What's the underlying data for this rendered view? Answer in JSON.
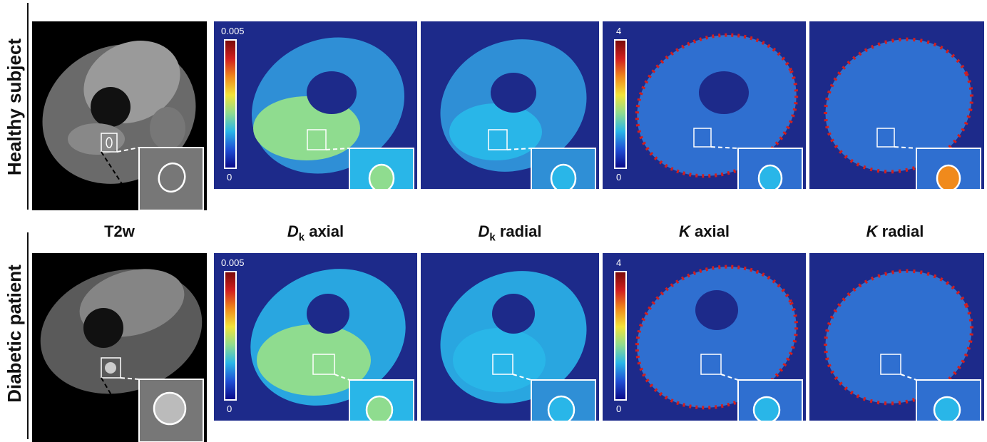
{
  "rows": [
    {
      "label": "Healthy subject"
    },
    {
      "label": "Diabetic patient"
    }
  ],
  "columns": [
    {
      "label_sym": "",
      "label_sub": "",
      "label_text": "T2w"
    },
    {
      "label_sym": "D",
      "label_sub": "k",
      "label_text": " axial"
    },
    {
      "label_sym": "D",
      "label_sub": "k",
      "label_text": " radial"
    },
    {
      "label_sym": "K",
      "label_sub": "",
      "label_text": " axial"
    },
    {
      "label_sym": "K",
      "label_sub": "",
      "label_text": " radial"
    }
  ],
  "colorbars": {
    "dk": {
      "max": "0.005",
      "min": "0"
    },
    "k": {
      "max": "4",
      "min": "0"
    }
  },
  "colors": {
    "map_background": "#1d2a8a",
    "jet": [
      "#0a0a8a",
      "#1f4fd6",
      "#29b6e8",
      "#8fdc8f",
      "#f2e33a",
      "#f08a1c",
      "#d21f1f",
      "#7a0a0a"
    ]
  }
}
